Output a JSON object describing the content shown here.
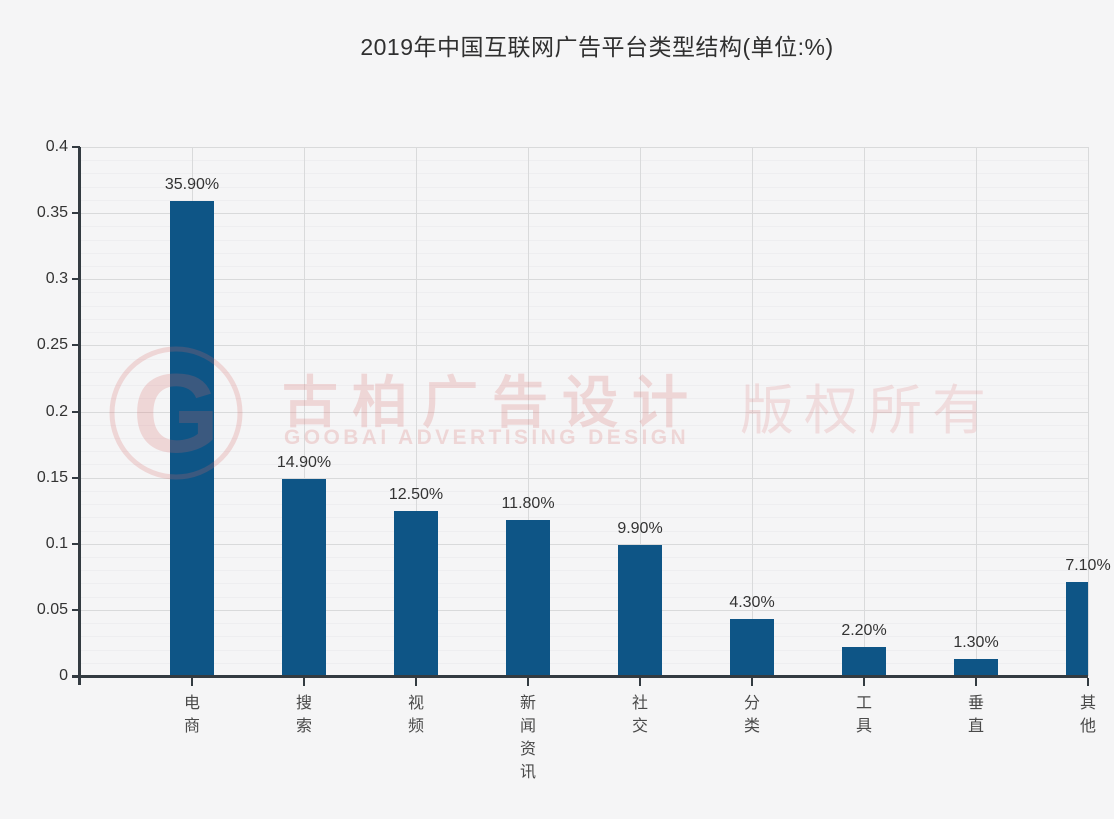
{
  "page": {
    "background": "#f5f5f6"
  },
  "chart_data": {
    "type": "bar",
    "title": "2019年中国互联网广告平台类型结构(单位:%)",
    "categories": [
      "电商",
      "搜索",
      "视频",
      "新闻资讯",
      "社交",
      "分类",
      "工具",
      "垂直",
      "其他"
    ],
    "values": [
      0.359,
      0.149,
      0.125,
      0.118,
      0.099,
      0.043,
      0.022,
      0.013,
      0.071
    ],
    "value_labels": [
      "35.90%",
      "14.90%",
      "12.50%",
      "11.80%",
      "9.90%",
      "4.30%",
      "2.20%",
      "1.30%",
      "7.10%"
    ],
    "xlabel": "",
    "ylabel": "",
    "ylim": [
      0,
      0.4
    ],
    "y_tick_values": [
      0,
      0.05,
      0.1,
      0.15,
      0.2,
      0.25,
      0.3,
      0.35,
      0.4
    ],
    "y_tick_labels": [
      "0",
      "0.05",
      "0.1",
      "0.15",
      "0.2",
      "0.25",
      "0.3",
      "0.35",
      "0.4"
    ],
    "minor_tick_step": 0.01,
    "grid": "on",
    "legend": null,
    "colors": {
      "bar": "#0e5586",
      "axis": "#333b41",
      "grid_major": "#d9dadb",
      "grid_minor": "#eeeef0",
      "label_text": "#333333",
      "category_text": "#4a4a4a"
    }
  },
  "watermark": {
    "logo_letter": "G",
    "cn_text": "古柏广告设计",
    "en_text": "GOOBAI ADVERTISING DESIGN",
    "rights_text": "版权所有",
    "color": "#d96a6a"
  }
}
